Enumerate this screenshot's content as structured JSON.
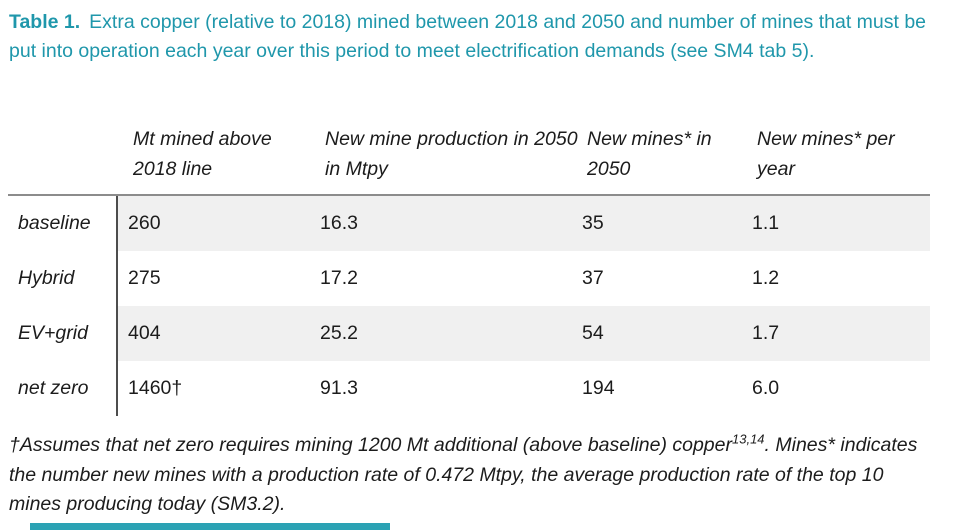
{
  "caption": {
    "label": "Table 1.",
    "text": "Extra copper (relative to 2018) mined between 2018 and 2050 and number of mines that must be put into operation each year over this period to meet electrification demands (see SM4 tab 5)."
  },
  "table": {
    "columns": [
      "Mt mined above 2018 line",
      "New mine production in 2050 in Mtpy",
      "New mines* in 2050",
      "New mines* per year"
    ],
    "rows": [
      {
        "label": "baseline",
        "values": [
          "260",
          "16.3",
          "35",
          "1.1"
        ]
      },
      {
        "label": "Hybrid",
        "values": [
          "275",
          "17.2",
          "37",
          "1.2"
        ]
      },
      {
        "label": "EV+grid",
        "values": [
          "404",
          "25.2",
          "54",
          "1.7"
        ]
      },
      {
        "label": "net zero",
        "values": [
          "1460†",
          "91.3",
          "194",
          "6.0"
        ]
      }
    ]
  },
  "footnote": {
    "part1": "†Assumes that net zero requires mining 1200 Mt additional (above baseline) copper",
    "superscript": "13,14",
    "part2": ". Mines* indicates the number new mines with a production rate of 0.472 Mtpy, the average production rate of the top 10 mines producing today (SM3.2)."
  },
  "colors": {
    "caption_teal": "#1f97ab",
    "row_shade": "#f0f0f0",
    "header_rule_gray": "#8c8c8c",
    "label_divider_gray": "#4d4d4d",
    "accent_bar_teal": "#2ba2b4",
    "text": "#1c1c1c"
  }
}
